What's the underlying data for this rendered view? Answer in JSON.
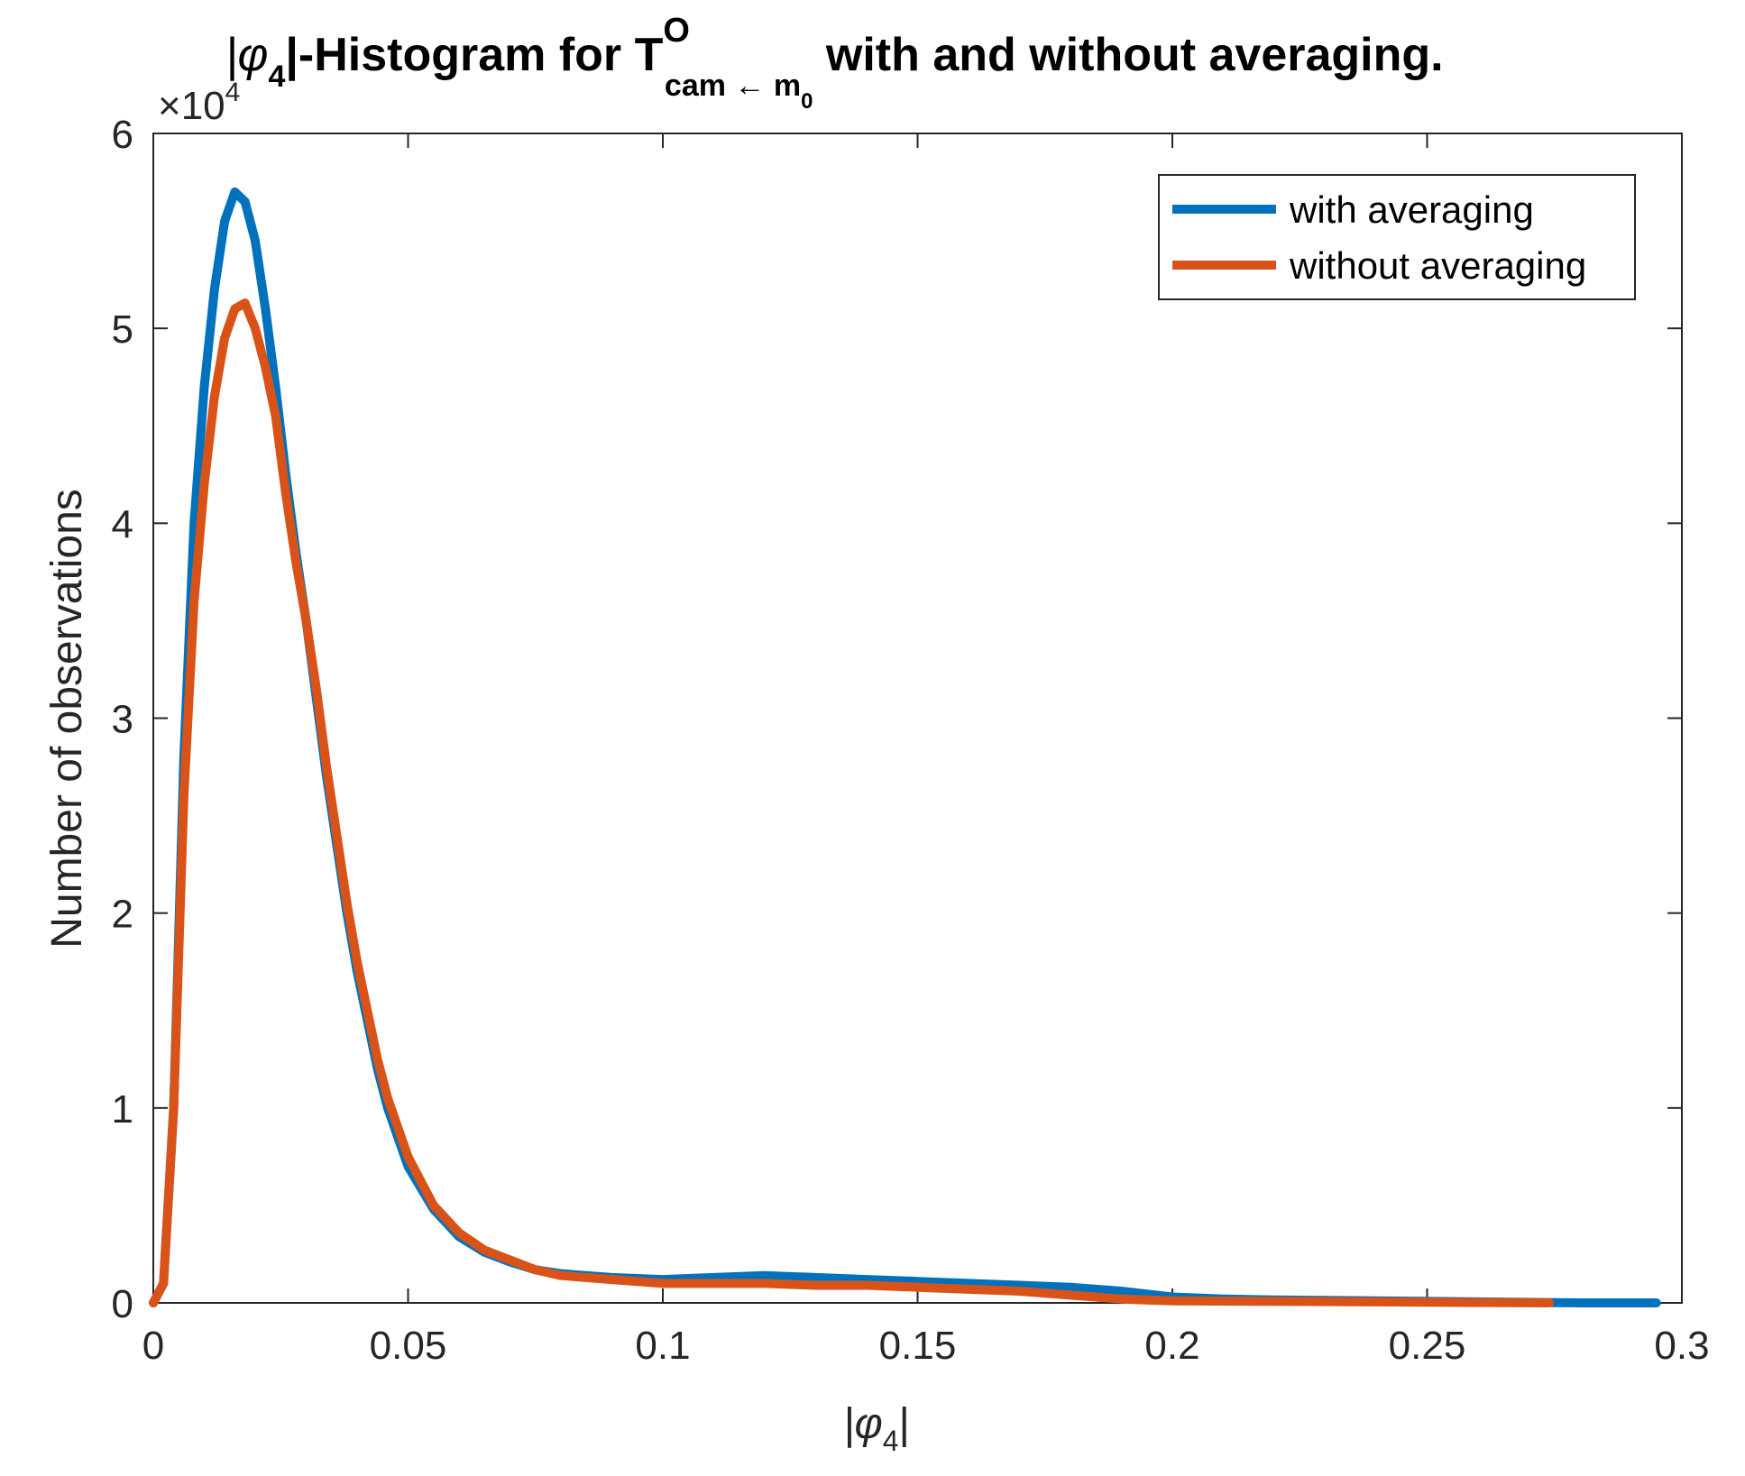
{
  "chart_data": {
    "type": "line",
    "title": {
      "pre": "|φ",
      "sub": "4",
      "mid": "|-Histogram for T",
      "sup": "O",
      "sub2": "cam ← m",
      "sub2_sub": "0",
      "post": " with and without averaging."
    },
    "xlabel": {
      "main": "|φ",
      "sub": "4",
      "end": "|"
    },
    "ylabel": "Number of observations",
    "y_exponent": {
      "base": "×10",
      "power": "4"
    },
    "xlim": [
      0,
      0.3
    ],
    "ylim": [
      0,
      60000
    ],
    "x_ticks": [
      0,
      0.05,
      0.1,
      0.15,
      0.2,
      0.25,
      0.3
    ],
    "x_tick_labels": [
      "0",
      "0.05",
      "0.1",
      "0.15",
      "0.2",
      "0.25",
      "0.3"
    ],
    "y_ticks": [
      0,
      10000,
      20000,
      30000,
      40000,
      50000,
      60000
    ],
    "y_tick_labels": [
      "0",
      "1",
      "2",
      "3",
      "4",
      "5",
      "6"
    ],
    "grid": false,
    "legend_position": "top-right",
    "series": [
      {
        "name": "with averaging",
        "color": "#0072bd",
        "points": [
          [
            0,
            0
          ],
          [
            0.002,
            1000
          ],
          [
            0.004,
            10000
          ],
          [
            0.006,
            28000
          ],
          [
            0.008,
            40000
          ],
          [
            0.01,
            47000
          ],
          [
            0.012,
            52000
          ],
          [
            0.014,
            55500
          ],
          [
            0.016,
            57000
          ],
          [
            0.018,
            56500
          ],
          [
            0.02,
            54500
          ],
          [
            0.022,
            51000
          ],
          [
            0.024,
            47000
          ],
          [
            0.026,
            42500
          ],
          [
            0.028,
            38500
          ],
          [
            0.03,
            35000
          ],
          [
            0.032,
            31000
          ],
          [
            0.034,
            27000
          ],
          [
            0.036,
            23500
          ],
          [
            0.038,
            20000
          ],
          [
            0.04,
            17000
          ],
          [
            0.042,
            14500
          ],
          [
            0.044,
            12000
          ],
          [
            0.046,
            10000
          ],
          [
            0.048,
            8500
          ],
          [
            0.05,
            7000
          ],
          [
            0.055,
            4800
          ],
          [
            0.06,
            3400
          ],
          [
            0.065,
            2600
          ],
          [
            0.07,
            2100
          ],
          [
            0.075,
            1700
          ],
          [
            0.08,
            1500
          ],
          [
            0.09,
            1300
          ],
          [
            0.1,
            1200
          ],
          [
            0.11,
            1300
          ],
          [
            0.12,
            1400
          ],
          [
            0.13,
            1300
          ],
          [
            0.14,
            1200
          ],
          [
            0.15,
            1100
          ],
          [
            0.16,
            1000
          ],
          [
            0.17,
            900
          ],
          [
            0.18,
            800
          ],
          [
            0.19,
            600
          ],
          [
            0.2,
            300
          ],
          [
            0.21,
            200
          ],
          [
            0.22,
            150
          ],
          [
            0.24,
            100
          ],
          [
            0.26,
            50
          ],
          [
            0.28,
            0
          ],
          [
            0.295,
            0
          ]
        ]
      },
      {
        "name": "without averaging",
        "color": "#d95319",
        "points": [
          [
            0,
            0
          ],
          [
            0.002,
            1000
          ],
          [
            0.004,
            10000
          ],
          [
            0.006,
            26000
          ],
          [
            0.008,
            36000
          ],
          [
            0.01,
            42000
          ],
          [
            0.012,
            46500
          ],
          [
            0.014,
            49500
          ],
          [
            0.016,
            51000
          ],
          [
            0.018,
            51300
          ],
          [
            0.02,
            50000
          ],
          [
            0.022,
            48000
          ],
          [
            0.024,
            45500
          ],
          [
            0.026,
            41500
          ],
          [
            0.028,
            38000
          ],
          [
            0.03,
            35000
          ],
          [
            0.032,
            31500
          ],
          [
            0.034,
            27500
          ],
          [
            0.036,
            24000
          ],
          [
            0.038,
            20500
          ],
          [
            0.04,
            17500
          ],
          [
            0.042,
            15000
          ],
          [
            0.044,
            12500
          ],
          [
            0.046,
            10500
          ],
          [
            0.048,
            9000
          ],
          [
            0.05,
            7500
          ],
          [
            0.055,
            5000
          ],
          [
            0.06,
            3600
          ],
          [
            0.065,
            2700
          ],
          [
            0.07,
            2200
          ],
          [
            0.075,
            1700
          ],
          [
            0.08,
            1400
          ],
          [
            0.09,
            1200
          ],
          [
            0.1,
            1000
          ],
          [
            0.11,
            1000
          ],
          [
            0.12,
            1000
          ],
          [
            0.13,
            900
          ],
          [
            0.14,
            900
          ],
          [
            0.15,
            800
          ],
          [
            0.16,
            700
          ],
          [
            0.17,
            600
          ],
          [
            0.18,
            400
          ],
          [
            0.19,
            200
          ],
          [
            0.2,
            100
          ],
          [
            0.22,
            80
          ],
          [
            0.24,
            50
          ],
          [
            0.26,
            20
          ],
          [
            0.274,
            0
          ]
        ]
      }
    ]
  }
}
